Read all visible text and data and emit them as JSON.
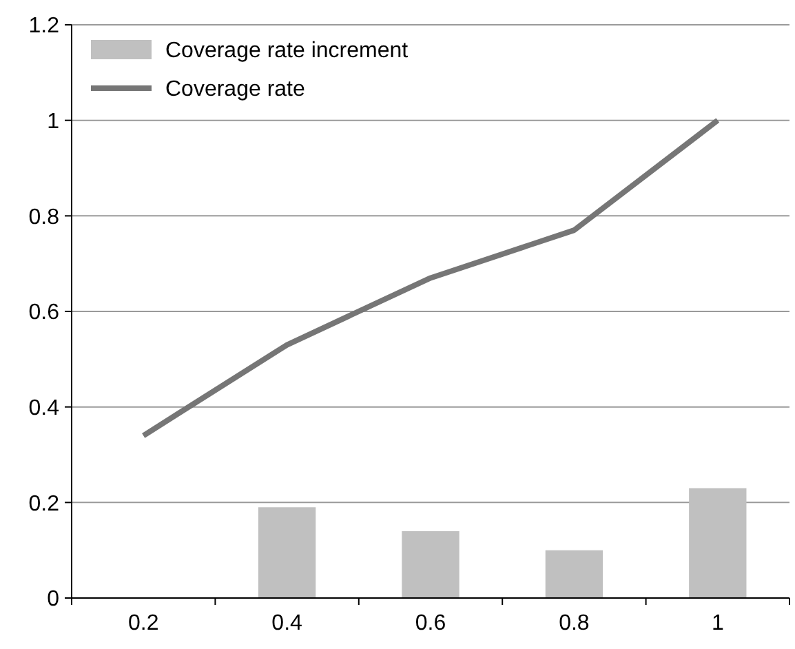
{
  "chart_data": {
    "type": "bar",
    "categories": [
      "0.2",
      "0.4",
      "0.6",
      "0.8",
      "1"
    ],
    "series": [
      {
        "name": "Coverage rate increment",
        "color": "#c0c0c0",
        "values": [
          0,
          0.19,
          0.14,
          0.1,
          0.23
        ]
      },
      {
        "name": "Coverage rate",
        "type": "line",
        "color": "#767676",
        "values": [
          0.34,
          0.53,
          0.67,
          0.77,
          1.0
        ]
      }
    ],
    "ylim": [
      0,
      1.2
    ],
    "yticks": [
      0,
      0.2,
      0.4,
      0.6,
      0.8,
      1,
      1.2
    ],
    "grid": "y",
    "legend": "top left",
    "marker": "none",
    "line_style": "solid"
  }
}
